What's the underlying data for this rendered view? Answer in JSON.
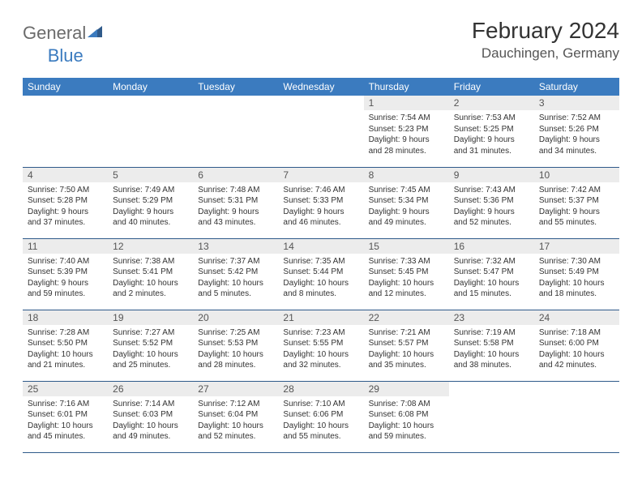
{
  "logo": {
    "main": "General",
    "sub": "Blue"
  },
  "title": "February 2024",
  "location": "Dauchingen, Germany",
  "weekdays": [
    "Sunday",
    "Monday",
    "Tuesday",
    "Wednesday",
    "Thursday",
    "Friday",
    "Saturday"
  ],
  "colors": {
    "header_bg": "#3b7bbf",
    "header_text": "#ffffff",
    "daynum_bg": "#ececec",
    "border": "#2f5a8a",
    "logo_gray": "#6b6b6b",
    "logo_blue": "#3b7bbf"
  },
  "weeks": [
    [
      null,
      null,
      null,
      null,
      {
        "n": "1",
        "sr": "Sunrise: 7:54 AM",
        "ss": "Sunset: 5:23 PM",
        "d1": "Daylight: 9 hours",
        "d2": "and 28 minutes."
      },
      {
        "n": "2",
        "sr": "Sunrise: 7:53 AM",
        "ss": "Sunset: 5:25 PM",
        "d1": "Daylight: 9 hours",
        "d2": "and 31 minutes."
      },
      {
        "n": "3",
        "sr": "Sunrise: 7:52 AM",
        "ss": "Sunset: 5:26 PM",
        "d1": "Daylight: 9 hours",
        "d2": "and 34 minutes."
      }
    ],
    [
      {
        "n": "4",
        "sr": "Sunrise: 7:50 AM",
        "ss": "Sunset: 5:28 PM",
        "d1": "Daylight: 9 hours",
        "d2": "and 37 minutes."
      },
      {
        "n": "5",
        "sr": "Sunrise: 7:49 AM",
        "ss": "Sunset: 5:29 PM",
        "d1": "Daylight: 9 hours",
        "d2": "and 40 minutes."
      },
      {
        "n": "6",
        "sr": "Sunrise: 7:48 AM",
        "ss": "Sunset: 5:31 PM",
        "d1": "Daylight: 9 hours",
        "d2": "and 43 minutes."
      },
      {
        "n": "7",
        "sr": "Sunrise: 7:46 AM",
        "ss": "Sunset: 5:33 PM",
        "d1": "Daylight: 9 hours",
        "d2": "and 46 minutes."
      },
      {
        "n": "8",
        "sr": "Sunrise: 7:45 AM",
        "ss": "Sunset: 5:34 PM",
        "d1": "Daylight: 9 hours",
        "d2": "and 49 minutes."
      },
      {
        "n": "9",
        "sr": "Sunrise: 7:43 AM",
        "ss": "Sunset: 5:36 PM",
        "d1": "Daylight: 9 hours",
        "d2": "and 52 minutes."
      },
      {
        "n": "10",
        "sr": "Sunrise: 7:42 AM",
        "ss": "Sunset: 5:37 PM",
        "d1": "Daylight: 9 hours",
        "d2": "and 55 minutes."
      }
    ],
    [
      {
        "n": "11",
        "sr": "Sunrise: 7:40 AM",
        "ss": "Sunset: 5:39 PM",
        "d1": "Daylight: 9 hours",
        "d2": "and 59 minutes."
      },
      {
        "n": "12",
        "sr": "Sunrise: 7:38 AM",
        "ss": "Sunset: 5:41 PM",
        "d1": "Daylight: 10 hours",
        "d2": "and 2 minutes."
      },
      {
        "n": "13",
        "sr": "Sunrise: 7:37 AM",
        "ss": "Sunset: 5:42 PM",
        "d1": "Daylight: 10 hours",
        "d2": "and 5 minutes."
      },
      {
        "n": "14",
        "sr": "Sunrise: 7:35 AM",
        "ss": "Sunset: 5:44 PM",
        "d1": "Daylight: 10 hours",
        "d2": "and 8 minutes."
      },
      {
        "n": "15",
        "sr": "Sunrise: 7:33 AM",
        "ss": "Sunset: 5:45 PM",
        "d1": "Daylight: 10 hours",
        "d2": "and 12 minutes."
      },
      {
        "n": "16",
        "sr": "Sunrise: 7:32 AM",
        "ss": "Sunset: 5:47 PM",
        "d1": "Daylight: 10 hours",
        "d2": "and 15 minutes."
      },
      {
        "n": "17",
        "sr": "Sunrise: 7:30 AM",
        "ss": "Sunset: 5:49 PM",
        "d1": "Daylight: 10 hours",
        "d2": "and 18 minutes."
      }
    ],
    [
      {
        "n": "18",
        "sr": "Sunrise: 7:28 AM",
        "ss": "Sunset: 5:50 PM",
        "d1": "Daylight: 10 hours",
        "d2": "and 21 minutes."
      },
      {
        "n": "19",
        "sr": "Sunrise: 7:27 AM",
        "ss": "Sunset: 5:52 PM",
        "d1": "Daylight: 10 hours",
        "d2": "and 25 minutes."
      },
      {
        "n": "20",
        "sr": "Sunrise: 7:25 AM",
        "ss": "Sunset: 5:53 PM",
        "d1": "Daylight: 10 hours",
        "d2": "and 28 minutes."
      },
      {
        "n": "21",
        "sr": "Sunrise: 7:23 AM",
        "ss": "Sunset: 5:55 PM",
        "d1": "Daylight: 10 hours",
        "d2": "and 32 minutes."
      },
      {
        "n": "22",
        "sr": "Sunrise: 7:21 AM",
        "ss": "Sunset: 5:57 PM",
        "d1": "Daylight: 10 hours",
        "d2": "and 35 minutes."
      },
      {
        "n": "23",
        "sr": "Sunrise: 7:19 AM",
        "ss": "Sunset: 5:58 PM",
        "d1": "Daylight: 10 hours",
        "d2": "and 38 minutes."
      },
      {
        "n": "24",
        "sr": "Sunrise: 7:18 AM",
        "ss": "Sunset: 6:00 PM",
        "d1": "Daylight: 10 hours",
        "d2": "and 42 minutes."
      }
    ],
    [
      {
        "n": "25",
        "sr": "Sunrise: 7:16 AM",
        "ss": "Sunset: 6:01 PM",
        "d1": "Daylight: 10 hours",
        "d2": "and 45 minutes."
      },
      {
        "n": "26",
        "sr": "Sunrise: 7:14 AM",
        "ss": "Sunset: 6:03 PM",
        "d1": "Daylight: 10 hours",
        "d2": "and 49 minutes."
      },
      {
        "n": "27",
        "sr": "Sunrise: 7:12 AM",
        "ss": "Sunset: 6:04 PM",
        "d1": "Daylight: 10 hours",
        "d2": "and 52 minutes."
      },
      {
        "n": "28",
        "sr": "Sunrise: 7:10 AM",
        "ss": "Sunset: 6:06 PM",
        "d1": "Daylight: 10 hours",
        "d2": "and 55 minutes."
      },
      {
        "n": "29",
        "sr": "Sunrise: 7:08 AM",
        "ss": "Sunset: 6:08 PM",
        "d1": "Daylight: 10 hours",
        "d2": "and 59 minutes."
      },
      null,
      null
    ]
  ]
}
